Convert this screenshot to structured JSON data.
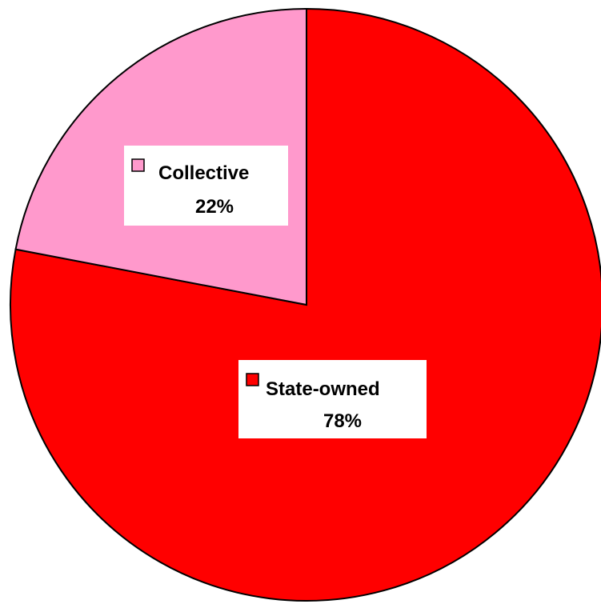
{
  "chart_data": {
    "type": "pie",
    "title": "",
    "legend": "none",
    "slices": [
      {
        "label": "State-owned",
        "value": 78,
        "value_label": "78%",
        "color": "#ff0000"
      },
      {
        "label": "Collective",
        "value": 22,
        "value_label": "22%",
        "color": "#ff99cc"
      }
    ]
  }
}
